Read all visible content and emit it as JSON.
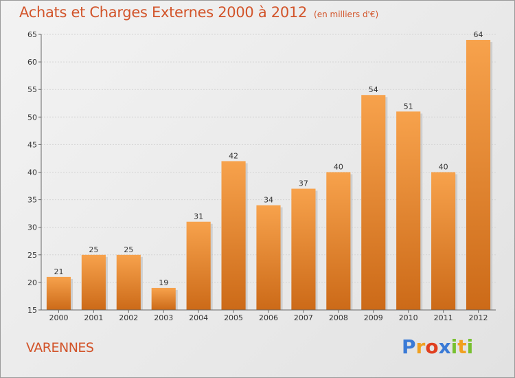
{
  "header": {
    "title": "Achats et Charges Externes 2000 à 2012",
    "subtitle": "(en milliers d'€)"
  },
  "footer": {
    "place": "VARENNES",
    "brand_letters": [
      {
        "ch": "P",
        "color": "#3a7ad6"
      },
      {
        "ch": "r",
        "color": "#f0a020"
      },
      {
        "ch": "o",
        "color": "#e04020"
      },
      {
        "ch": "x",
        "color": "#3a7ad6"
      },
      {
        "ch": "i",
        "color": "#78c030"
      },
      {
        "ch": "t",
        "color": "#f0a020"
      },
      {
        "ch": "i",
        "color": "#78c030"
      }
    ]
  },
  "chart_data": {
    "type": "bar",
    "title": "Achats et Charges Externes 2000 à 2012",
    "subtitle": "(en milliers d'€)",
    "categories": [
      "2000",
      "2001",
      "2002",
      "2003",
      "2004",
      "2005",
      "2006",
      "2007",
      "2008",
      "2009",
      "2010",
      "2011",
      "2012"
    ],
    "values": [
      21,
      25,
      25,
      19,
      31,
      42,
      34,
      37,
      40,
      54,
      51,
      40,
      64
    ],
    "ylim": [
      15,
      65
    ],
    "yticks": [
      15,
      20,
      25,
      30,
      35,
      40,
      45,
      50,
      55,
      60,
      65
    ],
    "grid": true,
    "bar_color_top": "#f7a24c",
    "bar_color_bottom": "#cc6a18",
    "xlabel": "",
    "ylabel": ""
  }
}
